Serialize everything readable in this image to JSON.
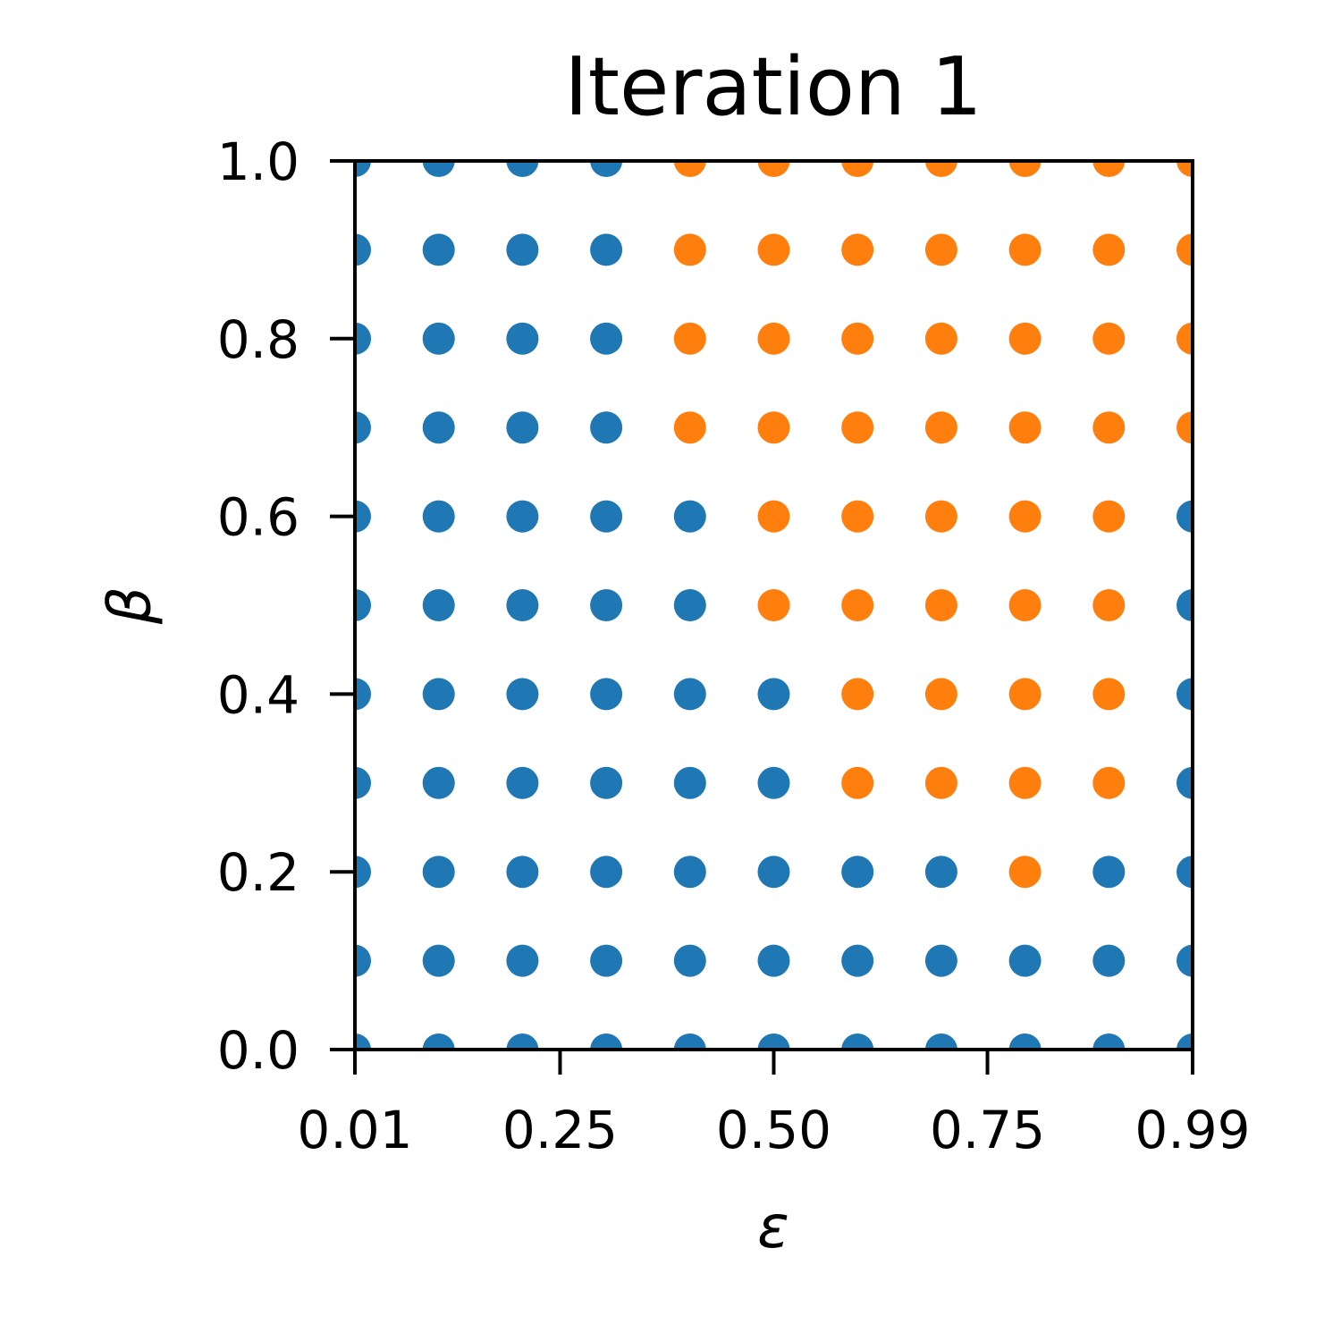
{
  "chart_data": {
    "type": "scatter",
    "title": "Iteration 1",
    "xlabel": "ε",
    "ylabel": "β",
    "xlim": [
      0.01,
      0.99
    ],
    "ylim": [
      0.0,
      1.0
    ],
    "x_ticks": [
      0.01,
      0.25,
      0.5,
      0.75,
      0.99
    ],
    "x_tick_labels": [
      "0.01",
      "0.25",
      "0.50",
      "0.75",
      "0.99"
    ],
    "y_ticks": [
      0.0,
      0.2,
      0.4,
      0.6,
      0.8,
      1.0
    ],
    "y_tick_labels": [
      "0.0",
      "0.2",
      "0.4",
      "0.6",
      "0.8",
      "1.0"
    ],
    "grid": false,
    "x_values": [
      0.01,
      0.108,
      0.206,
      0.304,
      0.402,
      0.5,
      0.598,
      0.696,
      0.794,
      0.892,
      0.99
    ],
    "y_values": [
      0.0,
      0.1,
      0.2,
      0.3,
      0.4,
      0.5,
      0.6,
      0.7,
      0.8,
      0.9,
      1.0
    ],
    "class_colors": [
      "#1f77b4",
      "#ff7f0e"
    ],
    "class_grid_note": "rows from beta=0.0 upward; 0 = blue, 1 = orange",
    "class_grid": [
      [
        0,
        0,
        0,
        0,
        0,
        0,
        0,
        0,
        0,
        0,
        0
      ],
      [
        0,
        0,
        0,
        0,
        0,
        0,
        0,
        0,
        0,
        0,
        0
      ],
      [
        0,
        0,
        0,
        0,
        0,
        0,
        0,
        0,
        1,
        0,
        0
      ],
      [
        0,
        0,
        0,
        0,
        0,
        0,
        1,
        1,
        1,
        1,
        0
      ],
      [
        0,
        0,
        0,
        0,
        0,
        0,
        1,
        1,
        1,
        1,
        0
      ],
      [
        0,
        0,
        0,
        0,
        0,
        1,
        1,
        1,
        1,
        1,
        0
      ],
      [
        0,
        0,
        0,
        0,
        0,
        1,
        1,
        1,
        1,
        1,
        0
      ],
      [
        0,
        0,
        0,
        0,
        1,
        1,
        1,
        1,
        1,
        1,
        1
      ],
      [
        0,
        0,
        0,
        0,
        1,
        1,
        1,
        1,
        1,
        1,
        1
      ],
      [
        0,
        0,
        0,
        0,
        1,
        1,
        1,
        1,
        1,
        1,
        1
      ],
      [
        0,
        0,
        0,
        0,
        1,
        1,
        1,
        1,
        1,
        1,
        1
      ]
    ]
  }
}
